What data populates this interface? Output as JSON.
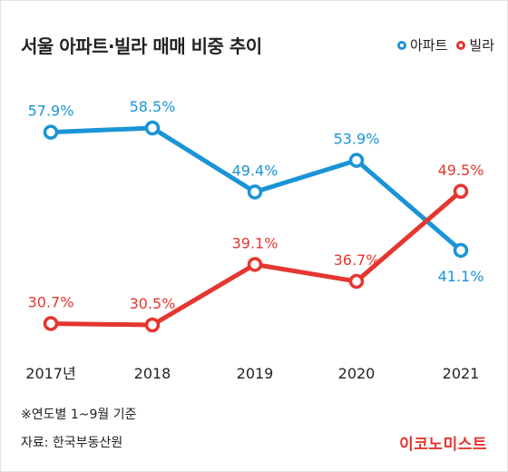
{
  "title": "서울 아파트·빌라 매매 비중 추이",
  "footnote": "※연도별 1~9월 기준",
  "source": "자료: 한국부동산원",
  "brand": "이코노미스트",
  "colors": {
    "apartment": "#1a94d6",
    "villa": "#e5362f"
  },
  "chart_data": {
    "type": "line",
    "title": "서울 아파트·빌라 매매 비중 추이",
    "categories": [
      "2017년",
      "2018",
      "2019",
      "2020",
      "2021"
    ],
    "unit": "%",
    "ylim": [
      25,
      65
    ],
    "grid": false,
    "legend": "top-right",
    "series": [
      {
        "name": "아파트",
        "values": [
          57.9,
          58.5,
          49.4,
          53.9,
          41.1
        ],
        "labels": [
          "57.9%",
          "58.5%",
          "49.4%",
          "53.9%",
          "41.1%"
        ],
        "color": "#1a94d6"
      },
      {
        "name": "빌라",
        "values": [
          30.7,
          30.5,
          39.1,
          36.7,
          49.5
        ],
        "labels": [
          "30.7%",
          "30.5%",
          "39.1%",
          "36.7%",
          "49.5%"
        ],
        "color": "#e5362f"
      }
    ]
  }
}
